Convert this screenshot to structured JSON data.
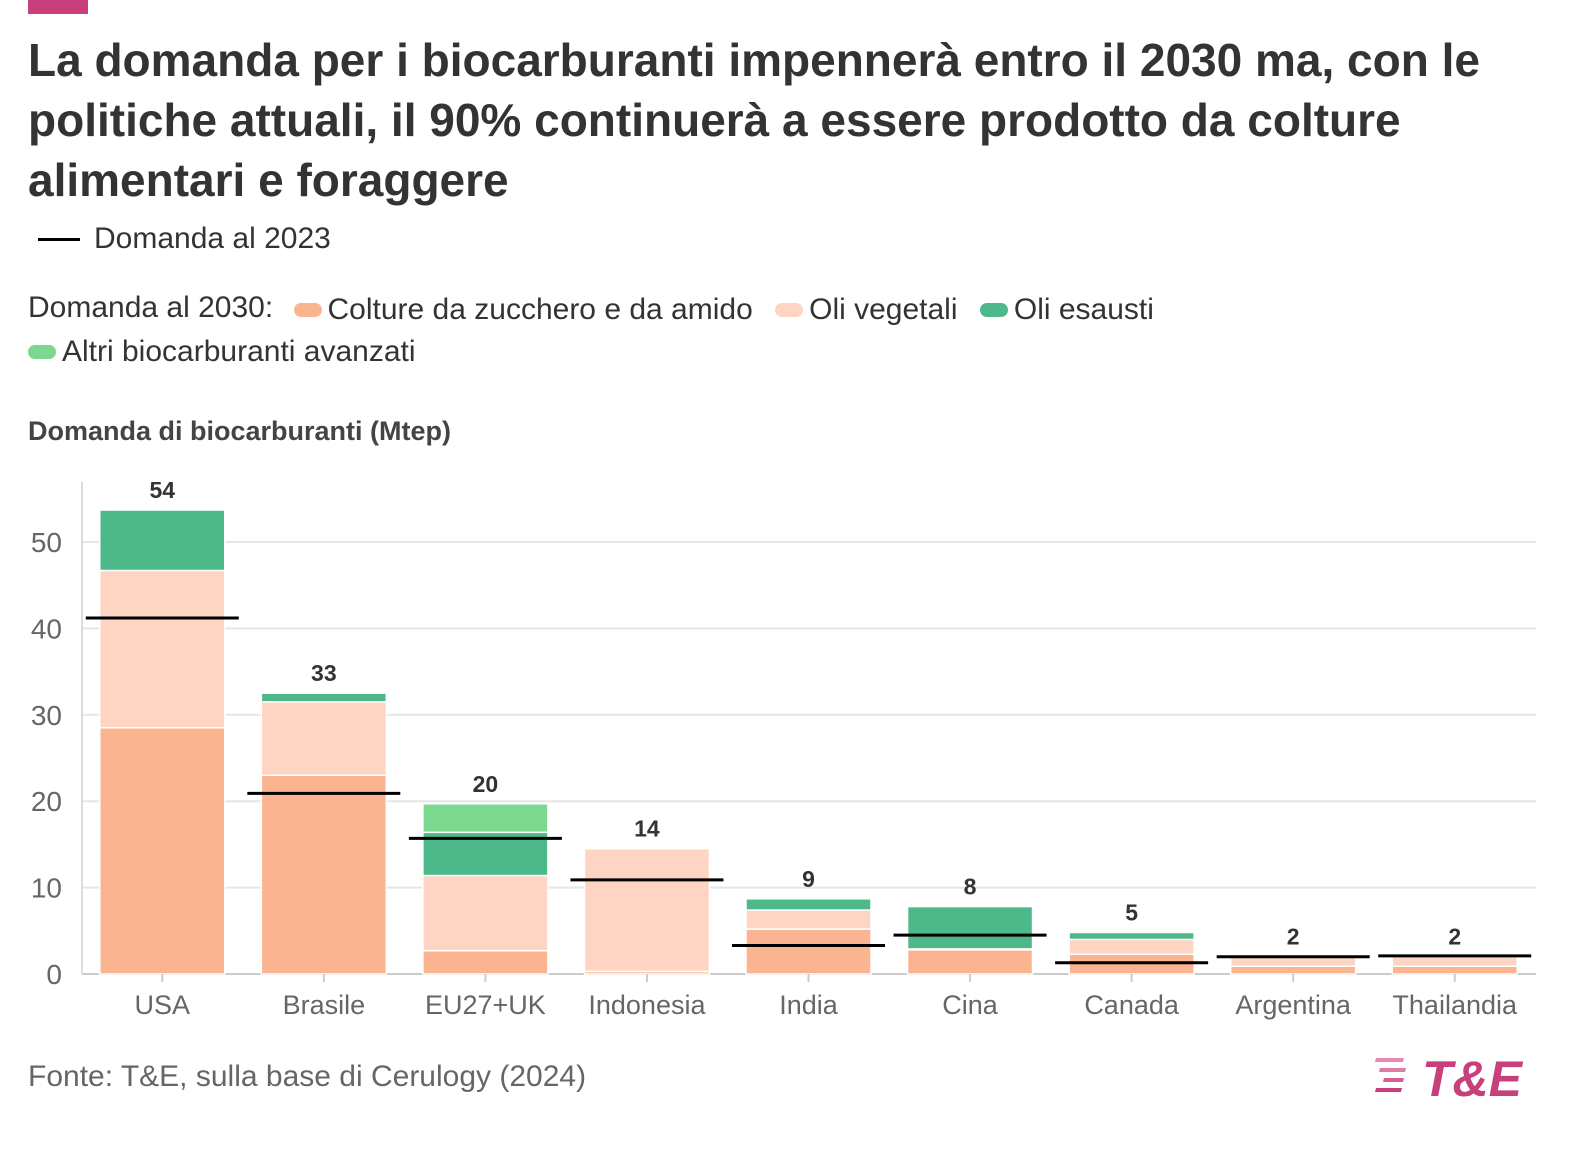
{
  "title": "La domanda per i biocarburanti impennerà entro il 2030 ma, con le politiche attuali, il 90% continuerà a essere prodotto da colture alimentari e foraggere",
  "legend_2023": {
    "label": "Domanda al 2023",
    "color": "#000000"
  },
  "legend_2030": {
    "prefix": "Domanda al 2030:",
    "items": [
      {
        "label": "Colture da zucchero e da amido",
        "color": "#fbb490"
      },
      {
        "label": "Oli vegetali",
        "color": "#fdd5c2"
      },
      {
        "label": "Oli esausti",
        "color": "#4db88a"
      },
      {
        "label": "Altri biocarburanti avanzati",
        "color": "#7dd88f"
      }
    ]
  },
  "source": "Fonte: T&E, sulla base di Cerulogy (2024)",
  "logo": {
    "text": "T&E",
    "color": "#c93f7c"
  },
  "chart_data": {
    "type": "bar",
    "stacked": true,
    "ylabel": "Domanda di biocarburanti (Mtep)",
    "ylim": [
      0,
      57
    ],
    "yticks": [
      0,
      10,
      20,
      30,
      40,
      50
    ],
    "categories": [
      "USA",
      "Brasile",
      "EU27+UK",
      "Indonesia",
      "India",
      "Cina",
      "Canada",
      "Argentina",
      "Thailandia"
    ],
    "series": [
      {
        "name": "Colture da zucchero e da amido",
        "color": "#fbb490",
        "values": [
          28.5,
          23,
          2.7,
          0.3,
          5.2,
          2.8,
          2.3,
          0.9,
          0.9
        ]
      },
      {
        "name": "Oli vegetali",
        "color": "#fdd5c2",
        "values": [
          18.2,
          8.5,
          8.7,
          14.2,
          2.2,
          0.1,
          1.7,
          1.1,
          1.1
        ]
      },
      {
        "name": "Oli esausti",
        "color": "#4db88a",
        "values": [
          7.0,
          1.0,
          5.0,
          0,
          1.3,
          4.9,
          0.8,
          0,
          0
        ]
      },
      {
        "name": "Altri biocarburanti avanzati",
        "color": "#7dd88f",
        "values": [
          0,
          0,
          3.3,
          0,
          0,
          0,
          0,
          0,
          0
        ]
      }
    ],
    "totals": [
      "54",
      "33",
      "20",
      "14",
      "9",
      "8",
      "5",
      "2",
      "2"
    ],
    "demand_2023": [
      41.2,
      20.9,
      15.7,
      10.9,
      3.3,
      4.5,
      1.3,
      2.0,
      2.1
    ],
    "demand_2023_label": "Domanda al 2023"
  }
}
